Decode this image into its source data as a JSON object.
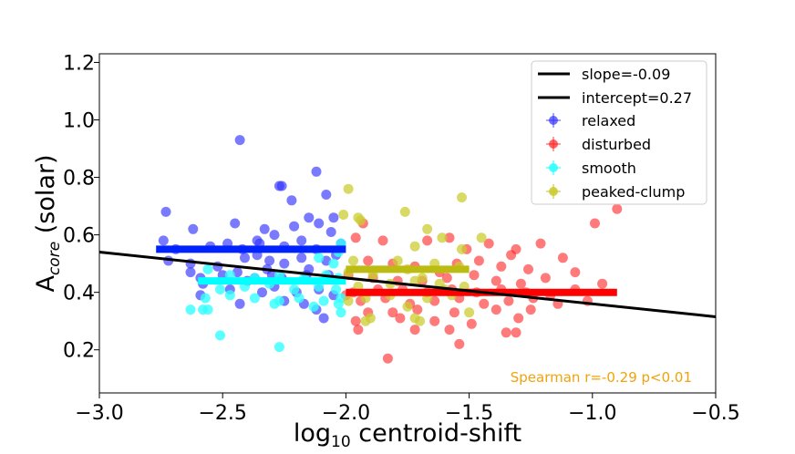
{
  "chart_data": {
    "type": "scatter",
    "title": "",
    "xlabel": {
      "prefix": "log",
      "sub": "10",
      "suffix": " centroid-shift"
    },
    "ylabel": {
      "prefix": "A",
      "sub": "core",
      "suffix": " (solar)"
    },
    "xlim": [
      -3.0,
      -0.5
    ],
    "ylim": [
      0.05,
      1.23
    ],
    "xticks": [
      -3.0,
      -2.5,
      -2.0,
      -1.5,
      -1.0,
      -0.5
    ],
    "xtick_labels": [
      "−3.0",
      "−2.5",
      "−2.0",
      "−1.5",
      "−1.0",
      "−0.5"
    ],
    "yticks": [
      0.2,
      0.4,
      0.6,
      0.8,
      1.0,
      1.2
    ],
    "ytick_labels": [
      "0.2",
      "0.4",
      "0.6",
      "0.8",
      "1.0",
      "1.2"
    ],
    "fit_line": {
      "label_slope": "slope=-0.09",
      "label_intercept": "intercept=0.27",
      "slope": -0.09,
      "intercept": 0.27,
      "color": "#000000"
    },
    "annotation": {
      "text": "Spearman  r=-0.29   p<0.01",
      "color": "#f0a30a"
    },
    "series": [
      {
        "name": "relaxed",
        "color": "#3333ff",
        "bar": {
          "x0": -2.77,
          "x1": -2.0,
          "y": 0.55
        },
        "points": [
          [
            -2.43,
            0.93
          ],
          [
            -2.12,
            0.82
          ],
          [
            -2.26,
            0.77
          ],
          [
            -2.27,
            0.77
          ],
          [
            -2.22,
            0.72
          ],
          [
            -2.08,
            0.74
          ],
          [
            -2.73,
            0.68
          ],
          [
            -2.62,
            0.62
          ],
          [
            -2.45,
            0.64
          ],
          [
            -2.33,
            0.62
          ],
          [
            -2.21,
            0.63
          ],
          [
            -2.11,
            0.64
          ],
          [
            -2.15,
            0.66
          ],
          [
            -2.05,
            0.66
          ],
          [
            -2.36,
            0.58
          ],
          [
            -2.29,
            0.6
          ],
          [
            -2.18,
            0.58
          ],
          [
            -2.06,
            0.61
          ],
          [
            -2.74,
            0.58
          ],
          [
            -2.69,
            0.55
          ],
          [
            -2.55,
            0.56
          ],
          [
            -2.48,
            0.57
          ],
          [
            -2.42,
            0.55
          ],
          [
            -2.36,
            0.53
          ],
          [
            -2.25,
            0.56
          ],
          [
            -2.12,
            0.55
          ],
          [
            -2.02,
            0.57
          ],
          [
            -2.72,
            0.51
          ],
          [
            -2.63,
            0.5
          ],
          [
            -2.52,
            0.49
          ],
          [
            -2.41,
            0.52
          ],
          [
            -2.31,
            0.51
          ],
          [
            -2.25,
            0.5
          ],
          [
            -2.18,
            0.52
          ],
          [
            -2.08,
            0.51
          ],
          [
            -2.04,
            0.53
          ],
          [
            -2.59,
            0.45
          ],
          [
            -2.5,
            0.46
          ],
          [
            -2.44,
            0.47
          ],
          [
            -2.37,
            0.45
          ],
          [
            -2.32,
            0.48
          ],
          [
            -2.26,
            0.45
          ],
          [
            -2.16,
            0.46
          ],
          [
            -2.07,
            0.46
          ],
          [
            -2.59,
            0.39
          ],
          [
            -2.47,
            0.41
          ],
          [
            -2.34,
            0.4
          ],
          [
            -2.29,
            0.42
          ],
          [
            -2.2,
            0.4
          ],
          [
            -2.11,
            0.41
          ],
          [
            -2.05,
            0.39
          ],
          [
            -2.43,
            0.36
          ],
          [
            -2.25,
            0.37
          ],
          [
            -2.12,
            0.34
          ],
          [
            -2.09,
            0.31
          ],
          [
            -2.17,
            0.36
          ],
          [
            -2.58,
            0.43
          ],
          [
            -2.4,
            0.44
          ],
          [
            -2.63,
            0.47
          ],
          [
            -2.15,
            0.48
          ],
          [
            -2.35,
            0.57
          ],
          [
            -2.3,
            0.46
          ]
        ]
      },
      {
        "name": "disturbed",
        "color": "#ff2222",
        "bar": {
          "x0": -2.0,
          "x1": -0.9,
          "y": 0.4
        },
        "points": [
          [
            -0.9,
            0.69
          ],
          [
            -0.99,
            0.64
          ],
          [
            -1.93,
            0.64
          ],
          [
            -1.96,
            0.59
          ],
          [
            -1.85,
            0.58
          ],
          [
            -1.67,
            0.58
          ],
          [
            -1.58,
            0.59
          ],
          [
            -1.42,
            0.57
          ],
          [
            -1.31,
            0.55
          ],
          [
            -1.21,
            0.57
          ],
          [
            -1.51,
            0.55
          ],
          [
            -1.33,
            0.53
          ],
          [
            -1.12,
            0.52
          ],
          [
            -1.91,
            0.51
          ],
          [
            -1.81,
            0.5
          ],
          [
            -1.72,
            0.49
          ],
          [
            -1.62,
            0.47
          ],
          [
            -1.55,
            0.5
          ],
          [
            -1.46,
            0.51
          ],
          [
            -1.37,
            0.49
          ],
          [
            -1.26,
            0.48
          ],
          [
            -1.07,
            0.47
          ],
          [
            -1.99,
            0.46
          ],
          [
            -1.89,
            0.45
          ],
          [
            -1.79,
            0.44
          ],
          [
            -1.69,
            0.44
          ],
          [
            -1.59,
            0.45
          ],
          [
            -1.48,
            0.46
          ],
          [
            -1.39,
            0.44
          ],
          [
            -1.29,
            0.43
          ],
          [
            -1.19,
            0.45
          ],
          [
            -0.96,
            0.43
          ],
          [
            -1.97,
            0.4
          ],
          [
            -1.87,
            0.41
          ],
          [
            -1.77,
            0.41
          ],
          [
            -1.67,
            0.4
          ],
          [
            -1.57,
            0.41
          ],
          [
            -1.47,
            0.4
          ],
          [
            -1.37,
            0.41
          ],
          [
            -1.27,
            0.4
          ],
          [
            -1.17,
            0.39
          ],
          [
            -1.07,
            0.41
          ],
          [
            -1.94,
            0.37
          ],
          [
            -1.84,
            0.38
          ],
          [
            -1.74,
            0.36
          ],
          [
            -1.64,
            0.37
          ],
          [
            -1.54,
            0.38
          ],
          [
            -1.44,
            0.36
          ],
          [
            -1.34,
            0.37
          ],
          [
            -1.24,
            0.38
          ],
          [
            -1.14,
            0.36
          ],
          [
            -1.02,
            0.37
          ],
          [
            -1.91,
            0.33
          ],
          [
            -1.81,
            0.33
          ],
          [
            -1.71,
            0.34
          ],
          [
            -1.56,
            0.33
          ],
          [
            -1.39,
            0.34
          ],
          [
            -1.25,
            0.34
          ],
          [
            -1.96,
            0.3
          ],
          [
            -1.78,
            0.31
          ],
          [
            -1.64,
            0.3
          ],
          [
            -1.49,
            0.29
          ],
          [
            -1.3,
            0.31
          ],
          [
            -1.95,
            0.27
          ],
          [
            -1.72,
            0.27
          ],
          [
            -1.58,
            0.27
          ],
          [
            -1.35,
            0.26
          ],
          [
            -1.31,
            0.26
          ],
          [
            -1.54,
            0.22
          ],
          [
            -1.83,
            0.17
          ],
          [
            -2.0,
            0.39
          ]
        ]
      },
      {
        "name": "smooth",
        "color": "#33ffff",
        "bar": {
          "x0": -2.6,
          "x1": -2.0,
          "y": 0.44
        },
        "points": [
          [
            -2.02,
            0.57
          ],
          [
            -2.03,
            0.54
          ],
          [
            -2.11,
            0.52
          ],
          [
            -2.05,
            0.5
          ],
          [
            -2.56,
            0.48
          ],
          [
            -2.47,
            0.46
          ],
          [
            -2.37,
            0.45
          ],
          [
            -2.27,
            0.46
          ],
          [
            -2.17,
            0.45
          ],
          [
            -2.08,
            0.46
          ],
          [
            -2.03,
            0.45
          ],
          [
            -2.51,
            0.41
          ],
          [
            -2.41,
            0.42
          ],
          [
            -2.31,
            0.43
          ],
          [
            -2.21,
            0.41
          ],
          [
            -2.11,
            0.42
          ],
          [
            -2.04,
            0.41
          ],
          [
            -2.57,
            0.38
          ],
          [
            -2.47,
            0.39
          ],
          [
            -2.37,
            0.38
          ],
          [
            -2.27,
            0.37
          ],
          [
            -2.19,
            0.38
          ],
          [
            -2.09,
            0.37
          ],
          [
            -2.02,
            0.38
          ],
          [
            -2.63,
            0.34
          ],
          [
            -2.56,
            0.34
          ],
          [
            -2.58,
            0.34
          ],
          [
            -2.29,
            0.36
          ],
          [
            -2.13,
            0.35
          ],
          [
            -2.03,
            0.36
          ],
          [
            -2.51,
            0.25
          ],
          [
            -2.27,
            0.21
          ],
          [
            -2.02,
            0.33
          ]
        ]
      },
      {
        "name": "peaked-clump",
        "color": "#cccc33",
        "bar": {
          "x0": -2.0,
          "x1": -1.5,
          "y": 0.48
        },
        "points": [
          [
            -1.99,
            0.76
          ],
          [
            -1.53,
            0.73
          ],
          [
            -1.76,
            0.68
          ],
          [
            -2.01,
            0.67
          ],
          [
            -1.95,
            0.66
          ],
          [
            -1.94,
            0.65
          ],
          [
            -1.67,
            0.62
          ],
          [
            -1.61,
            0.59
          ],
          [
            -1.45,
            0.59
          ],
          [
            -1.72,
            0.56
          ],
          [
            -1.53,
            0.55
          ],
          [
            -1.97,
            0.51
          ],
          [
            -1.79,
            0.51
          ],
          [
            -1.64,
            0.5
          ],
          [
            -1.54,
            0.49
          ],
          [
            -1.99,
            0.47
          ],
          [
            -1.89,
            0.46
          ],
          [
            -1.75,
            0.48
          ],
          [
            -1.69,
            0.45
          ],
          [
            -1.95,
            0.42
          ],
          [
            -1.82,
            0.43
          ],
          [
            -1.72,
            0.44
          ],
          [
            -1.62,
            0.43
          ],
          [
            -1.52,
            0.42
          ],
          [
            -1.92,
            0.38
          ],
          [
            -1.82,
            0.39
          ],
          [
            -1.67,
            0.38
          ],
          [
            -1.57,
            0.39
          ],
          [
            -1.9,
            0.31
          ],
          [
            -1.92,
            0.3
          ],
          [
            -1.75,
            0.35
          ],
          [
            -1.72,
            0.31
          ],
          [
            -1.7,
            0.3
          ],
          [
            -1.5,
            0.33
          ],
          [
            -1.99,
            0.37
          ],
          [
            -1.6,
            0.41
          ]
        ]
      }
    ]
  }
}
